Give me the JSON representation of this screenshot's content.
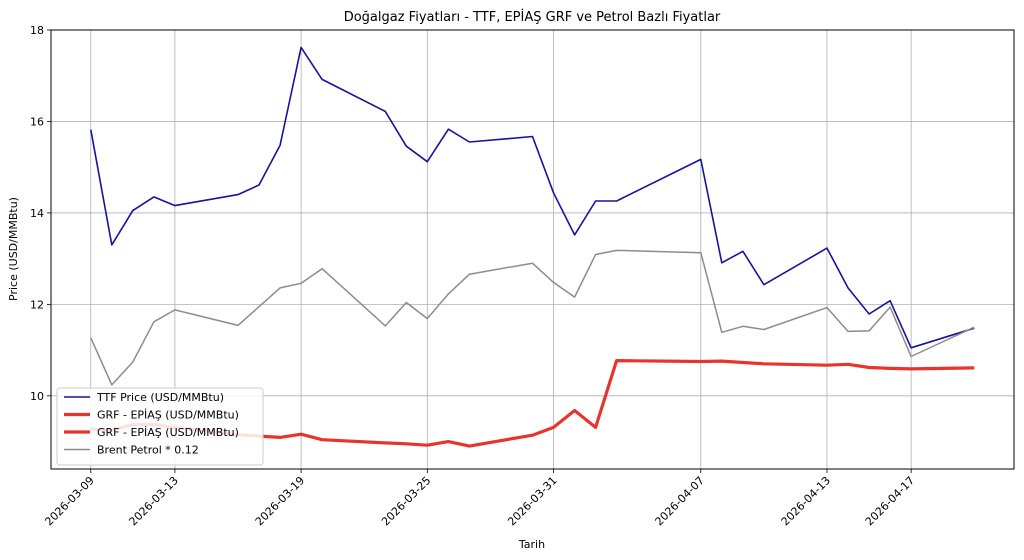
{
  "chart_data": {
    "type": "line",
    "title": "Doğalgaz Fiyatları - TTF, EPİAŞ GRF ve Petrol Bazlı Fiyatlar",
    "xlabel": "Tarih",
    "ylabel": "Price (USD/MMBtu)",
    "ylim": [
      8.4,
      18.0
    ],
    "yticks": [
      10,
      12,
      14,
      16,
      18
    ],
    "grid": true,
    "legend_position": "lower-left",
    "x": [
      "2026-03-09",
      "2026-03-10",
      "2026-03-11",
      "2026-03-12",
      "2026-03-13",
      "2026-03-16",
      "2026-03-17",
      "2026-03-18",
      "2026-03-19",
      "2026-03-20",
      "2026-03-23",
      "2026-03-24",
      "2026-03-25",
      "2026-03-26",
      "2026-03-27",
      "2026-03-30",
      "2026-03-31",
      "2026-04-01",
      "2026-04-02",
      "2026-04-03",
      "2026-04-07",
      "2026-04-08",
      "2026-04-09",
      "2026-04-10",
      "2026-04-13",
      "2026-04-14",
      "2026-04-15",
      "2026-04-16",
      "2026-04-17",
      "2026-04-20"
    ],
    "xticks": [
      "2026-03-09",
      "2026-03-13",
      "2026-03-19",
      "2026-03-25",
      "2026-03-31",
      "2026-04-07",
      "2026-04-13",
      "2026-04-17"
    ],
    "series": [
      {
        "name": "TTF Price (USD/MMBtu)",
        "color": "#1414a0",
        "width": 1.6,
        "values": [
          15.82,
          13.3,
          14.05,
          14.35,
          14.16,
          14.4,
          14.61,
          15.48,
          17.62,
          16.92,
          16.22,
          15.46,
          15.12,
          15.83,
          15.55,
          15.67,
          14.44,
          13.52,
          14.26,
          14.26,
          15.17,
          12.91,
          13.16,
          12.43,
          13.23,
          12.36,
          11.79,
          12.08,
          11.05,
          11.48
        ]
      },
      {
        "name": "GRF - EPİAŞ (USD/MMBtu)",
        "color": "#e8352b",
        "width": 3.2,
        "values": [
          9.27,
          9.25,
          9.37,
          9.37,
          9.31,
          9.15,
          9.12,
          9.09,
          9.16,
          9.04,
          8.97,
          8.95,
          8.92,
          9.0,
          8.9,
          9.14,
          9.31,
          9.68,
          9.31,
          10.77,
          10.75,
          10.76,
          10.73,
          10.7,
          10.67,
          10.69,
          10.62,
          10.6,
          10.59,
          10.61
        ]
      },
      {
        "name": "Brent Petrol * 0.12",
        "color": "#8c8c8c",
        "width": 1.5,
        "values": [
          11.27,
          10.24,
          10.74,
          11.62,
          11.88,
          11.54,
          11.95,
          12.36,
          12.46,
          12.78,
          11.53,
          12.04,
          11.69,
          12.23,
          12.66,
          12.9,
          12.48,
          12.16,
          13.09,
          13.18,
          13.13,
          11.39,
          11.52,
          11.45,
          11.93,
          11.41,
          11.42,
          11.94,
          10.86,
          11.5
        ]
      }
    ],
    "legend": [
      {
        "label": "TTF Price (USD/MMBtu)",
        "color": "#1414a0",
        "width": 1.6
      },
      {
        "label": "GRF - EPİAŞ (USD/MMBtu)",
        "color": "#e8352b",
        "width": 3.2
      },
      {
        "label": "GRF - EPİAŞ (USD/MMBtu)",
        "color": "#e8352b",
        "width": 3.2
      },
      {
        "label": "Brent Petrol * 0.12",
        "color": "#8c8c8c",
        "width": 1.5
      }
    ]
  }
}
